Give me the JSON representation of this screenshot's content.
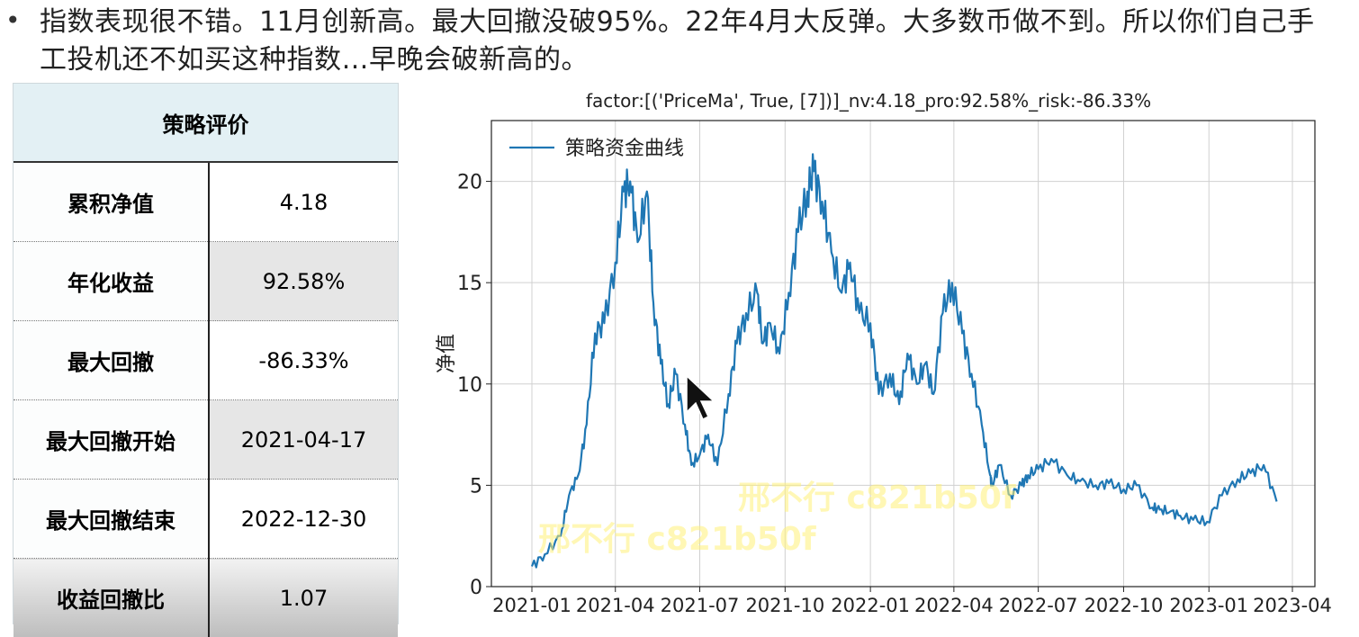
{
  "bullet": {
    "text": "指数表现很不错。11月创新高。最大回撤没破95%。22年4月大反弹。大多数币做不到。所以你们自己手工投机还不如买这种指数…早晚会破新高的。"
  },
  "table": {
    "header": "策略评价",
    "rows": [
      {
        "label": "累积净值",
        "value": "4.18"
      },
      {
        "label": "年化收益",
        "value": "92.58%"
      },
      {
        "label": "最大回撤",
        "value": "-86.33%"
      },
      {
        "label": "最大回撤开始",
        "value": "2021-04-17"
      },
      {
        "label": "最大回撤结束",
        "value": "2022-12-30"
      },
      {
        "label": "收益回撤比",
        "value": "1.07"
      }
    ]
  },
  "watermarks": [
    "邢不行 c821b50f",
    "邢不行 c821b50f"
  ],
  "chart_data": {
    "type": "line",
    "title": "factor:[('PriceMa', True, [7])]_nv:4.18_pro:92.58%_risk:-86.33%",
    "xlabel": "",
    "ylabel": "净值",
    "ylim": [
      0,
      23
    ],
    "yticks": [
      0,
      5,
      10,
      15,
      20
    ],
    "xticks": [
      "2021-01",
      "2021-04",
      "2021-07",
      "2021-10",
      "2022-01",
      "2022-04",
      "2022-07",
      "2022-10",
      "2023-01",
      "2023-04"
    ],
    "legend": "top-left",
    "grid": true,
    "color": "#1f77b4",
    "series": [
      {
        "name": "策略资金曲线",
        "x": [
          "2021-01-01",
          "2021-01-15",
          "2021-02-01",
          "2021-02-10",
          "2021-02-20",
          "2021-03-01",
          "2021-03-10",
          "2021-03-20",
          "2021-04-01",
          "2021-04-10",
          "2021-04-17",
          "2021-04-25",
          "2021-05-05",
          "2021-05-12",
          "2021-05-20",
          "2021-05-28",
          "2021-06-05",
          "2021-06-15",
          "2021-06-22",
          "2021-07-01",
          "2021-07-10",
          "2021-07-20",
          "2021-08-01",
          "2021-08-10",
          "2021-08-20",
          "2021-09-01",
          "2021-09-07",
          "2021-09-15",
          "2021-09-25",
          "2021-10-05",
          "2021-10-15",
          "2021-10-25",
          "2021-11-01",
          "2021-11-10",
          "2021-11-20",
          "2021-12-01",
          "2021-12-10",
          "2021-12-20",
          "2022-01-01",
          "2022-01-10",
          "2022-01-22",
          "2022-02-01",
          "2022-02-10",
          "2022-02-20",
          "2022-03-01",
          "2022-03-10",
          "2022-03-20",
          "2022-03-30",
          "2022-04-10",
          "2022-04-20",
          "2022-05-01",
          "2022-05-10",
          "2022-05-12",
          "2022-05-20",
          "2022-06-01",
          "2022-06-13",
          "2022-06-20",
          "2022-07-01",
          "2022-07-15",
          "2022-08-01",
          "2022-08-15",
          "2022-09-01",
          "2022-09-15",
          "2022-10-01",
          "2022-10-15",
          "2022-11-01",
          "2022-11-09",
          "2022-11-20",
          "2022-12-01",
          "2022-12-15",
          "2022-12-30",
          "2023-01-15",
          "2023-02-01",
          "2023-02-15",
          "2023-03-01",
          "2023-03-15"
        ],
        "values": [
          1.0,
          1.6,
          2.5,
          4.5,
          5.5,
          8.0,
          12.5,
          13.0,
          16.0,
          19.5,
          20.0,
          17.0,
          19.5,
          14.0,
          11.0,
          9.0,
          10.5,
          8.0,
          6.0,
          6.5,
          7.5,
          6.0,
          9.5,
          12.0,
          13.5,
          14.5,
          12.0,
          13.0,
          11.5,
          14.5,
          17.5,
          19.5,
          20.5,
          19.0,
          16.5,
          14.5,
          16.0,
          13.5,
          13.0,
          9.5,
          10.5,
          9.0,
          11.5,
          10.0,
          11.0,
          9.5,
          13.5,
          15.0,
          12.5,
          10.5,
          8.0,
          5.5,
          5.0,
          6.0,
          4.5,
          5.0,
          5.5,
          5.8,
          6.3,
          5.5,
          5.2,
          5.0,
          5.1,
          4.8,
          5.0,
          3.9,
          3.8,
          3.7,
          3.5,
          3.3,
          3.2,
          4.5,
          5.3,
          5.6,
          6.0,
          4.2
        ]
      }
    ]
  }
}
